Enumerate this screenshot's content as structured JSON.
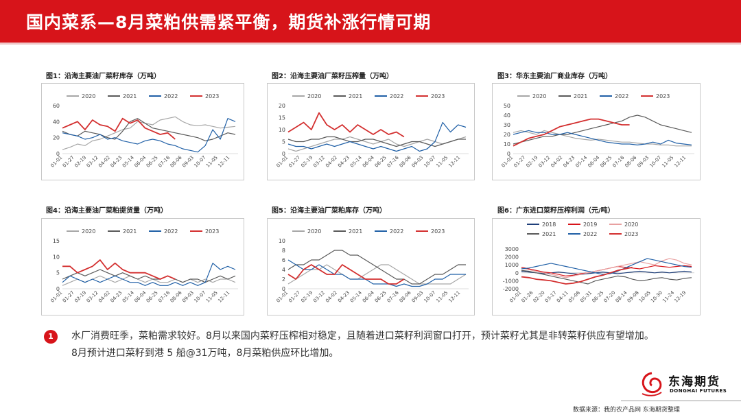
{
  "page": {
    "title": "国内菜系—8月菜粕供需紧平衡，期货补涨行情可期",
    "note_badge": "1",
    "note_text": "水厂消费旺季，菜粕需求较好。8月以来国内菜籽压榨相对稳定，且随着进口菜籽利润窗口打开，预计菜籽尤其是非转菜籽供应有望增加。8月预计进口菜籽到港 5 船@31万吨，8月菜粕供应环比增加。",
    "logo_cn": "东海期货",
    "logo_en": "DONGHAI FUTURES",
    "source": "数据来源：我的农产品网 东海期货整理"
  },
  "colors": {
    "2018": "#1f3f7a",
    "2019": "#d7141a",
    "2020": "#a6a6a6",
    "2021": "#595959",
    "2022": "#1f5fa6",
    "2023": "#d32f2f",
    "2020_fig6": "#e8a0a0"
  },
  "chart_data": [
    {
      "id": "fig1",
      "type": "line",
      "title": "图1：沿海主要油厂菜籽库存（万吨）",
      "ylim": [
        0,
        60
      ],
      "yticks": [
        0,
        20,
        40,
        60
      ],
      "xticks": [
        "01-01",
        "01-27",
        "02-19",
        "03-12",
        "04-02",
        "04-23",
        "05-14",
        "06-04",
        "06-25",
        "07-16",
        "08-06",
        "09-03",
        "10-07",
        "11-05",
        "12-11"
      ],
      "series": [
        {
          "name": "2020",
          "values": [
            5,
            8,
            12,
            10,
            16,
            18,
            22,
            26,
            30,
            32,
            40,
            38,
            36,
            42,
            44,
            46,
            40,
            36,
            35,
            36,
            34,
            32,
            33,
            34
          ]
        },
        {
          "name": "2021",
          "values": [
            28,
            24,
            22,
            28,
            26,
            24,
            20,
            18,
            28,
            40,
            44,
            38,
            32,
            30,
            28,
            26,
            24,
            22,
            20,
            16,
            18,
            22,
            26,
            24
          ]
        },
        {
          "name": "2022",
          "values": [
            26,
            24,
            22,
            18,
            20,
            24,
            18,
            20,
            16,
            14,
            12,
            16,
            18,
            16,
            12,
            10,
            6,
            4,
            2,
            10,
            30,
            18,
            44,
            40
          ]
        },
        {
          "name": "2023",
          "values": [
            32,
            36,
            40,
            30,
            42,
            36,
            34,
            28,
            44,
            38,
            42,
            32,
            28,
            24,
            26,
            18
          ]
        }
      ]
    },
    {
      "id": "fig2",
      "type": "line",
      "title": "图2：沿海主要油厂菜籽压榨量（万吨）",
      "ylim": [
        0,
        20
      ],
      "yticks": [
        0,
        5,
        10,
        15,
        20
      ],
      "xticks": [
        "01-01",
        "01-27",
        "02-19",
        "03-12",
        "04-02",
        "04-23",
        "05-14",
        "06-04",
        "06-25",
        "07-16",
        "08-06",
        "09-03",
        "10-07",
        "11-05",
        "12-11"
      ],
      "series": [
        {
          "name": "2020",
          "values": [
            2,
            1,
            2,
            3,
            4,
            5,
            6,
            6,
            7,
            6,
            5,
            4,
            5,
            6,
            4,
            3,
            4,
            5,
            6,
            5,
            4,
            5,
            6,
            7
          ]
        },
        {
          "name": "2021",
          "values": [
            6,
            5,
            5,
            6,
            6,
            7,
            7,
            6,
            5,
            5,
            6,
            6,
            5,
            4,
            3,
            4,
            5,
            5,
            4,
            3,
            4,
            5,
            6,
            6
          ]
        },
        {
          "name": "2022",
          "values": [
            4,
            3,
            3,
            2,
            3,
            4,
            3,
            4,
            5,
            4,
            3,
            2,
            3,
            2,
            1,
            2,
            3,
            1,
            2,
            5,
            13,
            9,
            12,
            11
          ]
        },
        {
          "name": "2023",
          "values": [
            9,
            11,
            13,
            10,
            17,
            12,
            10,
            12,
            9,
            12,
            10,
            8,
            10,
            8,
            9,
            7
          ]
        }
      ]
    },
    {
      "id": "fig3",
      "type": "line",
      "title": "图3：华东主要油厂商业库存（万吨）",
      "ylim": [
        0,
        50
      ],
      "yticks": [
        0,
        10,
        20,
        30,
        40,
        50
      ],
      "xticks": [
        "01-01",
        "01-27",
        "02-19",
        "03-12",
        "04-02",
        "04-23",
        "05-14",
        "06-04",
        "06-25",
        "07-16",
        "08-06",
        "09-03",
        "10-07",
        "11-05",
        "12-11"
      ],
      "series": [
        {
          "name": "2020",
          "values": [
            22,
            24,
            22,
            20,
            24,
            22,
            20,
            18,
            16,
            15,
            14,
            15,
            14,
            13,
            12,
            12,
            11,
            10,
            10,
            9,
            9,
            8,
            8,
            8
          ]
        },
        {
          "name": "2021",
          "values": [
            10,
            12,
            14,
            16,
            18,
            18,
            20,
            20,
            22,
            24,
            26,
            28,
            30,
            32,
            34,
            38,
            40,
            38,
            34,
            30,
            28,
            26,
            24,
            22
          ]
        },
        {
          "name": "2022",
          "values": [
            20,
            22,
            24,
            22,
            22,
            20,
            20,
            22,
            20,
            18,
            16,
            14,
            12,
            11,
            10,
            10,
            9,
            10,
            12,
            10,
            14,
            11,
            10,
            9
          ]
        },
        {
          "name": "2023",
          "values": [
            8,
            12,
            16,
            18,
            20,
            24,
            28,
            30,
            32,
            34,
            36,
            36,
            34,
            32,
            30,
            30
          ]
        }
      ]
    },
    {
      "id": "fig4",
      "type": "line",
      "title": "图4：沿海主要油厂菜粕提货量（万吨）",
      "ylim": [
        0,
        15
      ],
      "yticks": [
        0,
        5,
        10,
        15
      ],
      "xticks": [
        "01-01",
        "01-27",
        "02-19",
        "03-12",
        "04-02",
        "04-23",
        "05-14",
        "06-04",
        "06-25",
        "07-16",
        "08-06",
        "09-03",
        "10-07",
        "11-05",
        "12-11"
      ],
      "series": [
        {
          "name": "2020",
          "values": [
            1,
            2,
            3,
            2,
            3,
            4,
            3,
            2,
            3,
            4,
            3,
            2,
            3,
            2,
            2,
            3,
            2,
            3,
            2,
            3,
            2,
            3,
            3,
            2
          ]
        },
        {
          "name": "2021",
          "values": [
            3,
            4,
            5,
            4,
            5,
            6,
            5,
            4,
            5,
            4,
            3,
            4,
            3,
            3,
            4,
            3,
            2,
            3,
            3,
            2,
            3,
            4,
            3,
            4
          ]
        },
        {
          "name": "2022",
          "values": [
            2,
            4,
            3,
            2,
            3,
            2,
            3,
            4,
            3,
            2,
            2,
            1,
            2,
            1,
            1,
            2,
            1,
            2,
            1,
            2,
            8,
            6,
            7,
            6
          ]
        },
        {
          "name": "2023",
          "values": [
            7,
            7,
            5,
            6,
            7,
            9,
            6,
            8,
            6,
            5,
            5,
            5,
            4,
            3,
            4,
            3
          ]
        }
      ]
    },
    {
      "id": "fig5",
      "type": "line",
      "title": "图5：沿海主要油厂菜粕库存（万吨）",
      "ylim": [
        0,
        10
      ],
      "yticks": [
        0,
        2,
        4,
        6,
        8,
        10
      ],
      "xticks": [
        "01-01",
        "01-27",
        "02-19",
        "03-12",
        "04-02",
        "04-23",
        "05-14",
        "06-04",
        "06-25",
        "07-16",
        "08-06",
        "09-03",
        "10-07",
        "11-05",
        "12-11"
      ],
      "series": [
        {
          "name": "2020",
          "values": [
            1,
            2,
            3,
            4,
            4,
            5,
            4,
            3,
            2,
            2,
            3,
            4,
            5,
            5,
            4,
            3,
            2,
            1,
            1,
            1,
            1,
            1,
            2,
            3
          ]
        },
        {
          "name": "2021",
          "values": [
            4,
            5,
            5,
            6,
            6,
            7,
            8,
            8,
            7,
            7,
            6,
            5,
            4,
            3,
            2,
            2,
            1,
            1,
            2,
            3,
            3,
            4,
            5,
            5
          ]
        },
        {
          "name": "2022",
          "values": [
            6,
            5,
            4,
            4,
            5,
            4,
            3,
            3,
            2,
            2,
            2,
            1,
            1,
            1,
            0.5,
            1,
            0.5,
            0.5,
            1,
            2,
            2,
            3,
            3,
            3
          ]
        },
        {
          "name": "2023",
          "values": [
            3,
            2,
            4,
            5,
            4,
            3,
            3,
            5,
            4,
            3,
            2,
            2,
            2,
            1,
            1,
            2
          ]
        }
      ]
    },
    {
      "id": "fig6",
      "type": "line",
      "title": "图6：广东进口菜籽压榨利润（元/吨）",
      "ylim": [
        -2000,
        3000
      ],
      "yticks": [
        -2000,
        -1000,
        0,
        1000,
        2000,
        3000
      ],
      "xticks": [
        "01-01",
        "01-26",
        "02-20",
        "03-17",
        "04-11",
        "05-06",
        "05-31",
        "06-25",
        "07-20",
        "08-14",
        "09-08",
        "10-05",
        "10-30",
        "11-24",
        "12-19"
      ],
      "series": [
        {
          "name": "2018",
          "values": [
            200,
            100,
            0,
            -100,
            0,
            100,
            0,
            -100,
            -200,
            -100,
            0,
            100,
            0,
            -100,
            0,
            100,
            200,
            100,
            0,
            100,
            0,
            100,
            200,
            100
          ]
        },
        {
          "name": "2019",
          "values": [
            700,
            500,
            300,
            100,
            0,
            -200,
            -400,
            -300,
            -100,
            0,
            200,
            400,
            600,
            800,
            700,
            600,
            500,
            700,
            900,
            800,
            700,
            800,
            900,
            800
          ]
        },
        {
          "name": "2020",
          "values": [
            600,
            400,
            200,
            0,
            -200,
            -400,
            -600,
            -400,
            -200,
            0,
            200,
            400,
            600,
            800,
            1000,
            1200,
            1400,
            1200,
            1000,
            1500,
            1800,
            1600,
            1200,
            1000
          ]
        },
        {
          "name": "2021",
          "values": [
            300,
            200,
            0,
            -200,
            -400,
            -600,
            -800,
            -1000,
            -1200,
            -1400,
            -1000,
            -800,
            -600,
            -400,
            -500,
            -800,
            -1000,
            -900,
            -700,
            -600,
            -800,
            -900,
            -700,
            -600
          ]
        },
        {
          "name": "2022",
          "values": [
            500,
            600,
            800,
            1000,
            1200,
            1000,
            800,
            600,
            400,
            200,
            0,
            -200,
            -100,
            200,
            600,
            1000,
            1400,
            1800,
            1600,
            1400,
            1200,
            1000,
            800,
            700
          ]
        },
        {
          "name": "2023",
          "values": [
            -500,
            -600,
            -800,
            -900,
            -1000,
            -1200,
            -1400,
            -1300,
            -1100,
            -800,
            -500,
            -300,
            0,
            300,
            500,
            700
          ]
        }
      ]
    }
  ]
}
